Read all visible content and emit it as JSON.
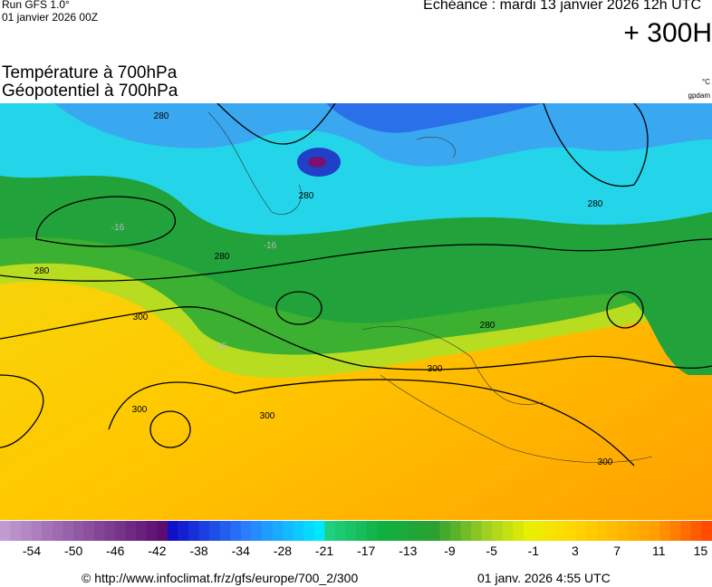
{
  "header": {
    "run": "Run GFS 1.0°",
    "run_date": "01 janvier 2026 00Z",
    "valid": "Echéance : mardi 13 janvier 2026 12h UTC",
    "lead": "+ 300H"
  },
  "titles": {
    "line1": "Température à 700hPa",
    "line2": "Géopotentiel à 700hPa"
  },
  "units": {
    "temperature": "°C",
    "geopotential": "gpdam"
  },
  "contour_labels": [
    "280",
    "280",
    "280",
    "280",
    "280",
    "280",
    "300",
    "300",
    "300",
    "300",
    "300",
    "-16",
    "-16",
    "-16"
  ],
  "colorbar": {
    "labels": [
      -54,
      -50,
      -46,
      -42,
      -38,
      -34,
      -28,
      -21,
      -17,
      -13,
      -9,
      -5,
      -1,
      3,
      7,
      11,
      15
    ]
  },
  "footer": {
    "source": "© http://www.infoclimat.fr/z/gfs/europe/700_2/300",
    "generated": "01 janv. 2026  4:55 UTC"
  }
}
